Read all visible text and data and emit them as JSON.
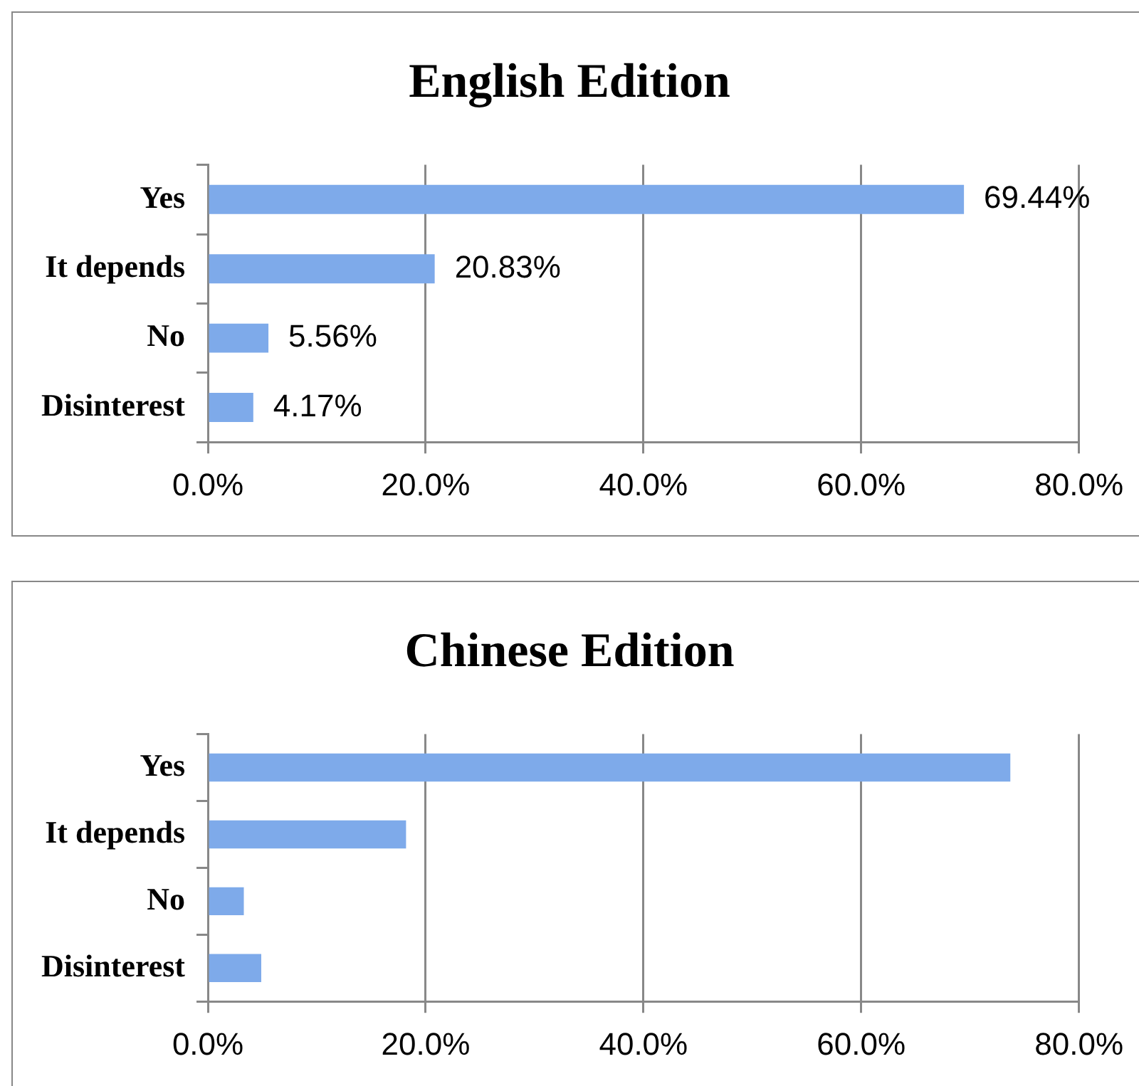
{
  "chart_data": [
    {
      "type": "bar",
      "orientation": "horizontal",
      "title": "English Edition",
      "categories": [
        "Yes",
        "It depends",
        "No",
        "Disinterest"
      ],
      "values": [
        69.44,
        20.83,
        5.56,
        4.17
      ],
      "value_labels": [
        "69.44%",
        "20.83%",
        "5.56%",
        "4.17%"
      ],
      "color": "#7eaaea",
      "xlim": [
        0,
        80
      ],
      "xticks": [
        {
          "value": 0,
          "label": "0.0%"
        },
        {
          "value": 20,
          "label": "20.0%"
        },
        {
          "value": 40,
          "label": "40.0%"
        },
        {
          "value": 60,
          "label": "60.0%"
        },
        {
          "value": 80,
          "label": "80.0%"
        }
      ],
      "grid": "x"
    },
    {
      "type": "bar",
      "orientation": "horizontal",
      "title": "Chinese Edition",
      "categories": [
        "Yes",
        "It depends",
        "No",
        "Disinterest"
      ],
      "values": [
        73.7,
        18.2,
        3.3,
        4.9
      ],
      "color": "#7eaaea",
      "xlim": [
        0,
        80
      ],
      "xticks": [
        {
          "value": 0,
          "label": "0.0%"
        },
        {
          "value": 20,
          "label": "20.0%"
        },
        {
          "value": 40,
          "label": "40.0%"
        },
        {
          "value": 60,
          "label": "60.0%"
        },
        {
          "value": 80,
          "label": "80.0%"
        }
      ],
      "grid": "x"
    }
  ]
}
